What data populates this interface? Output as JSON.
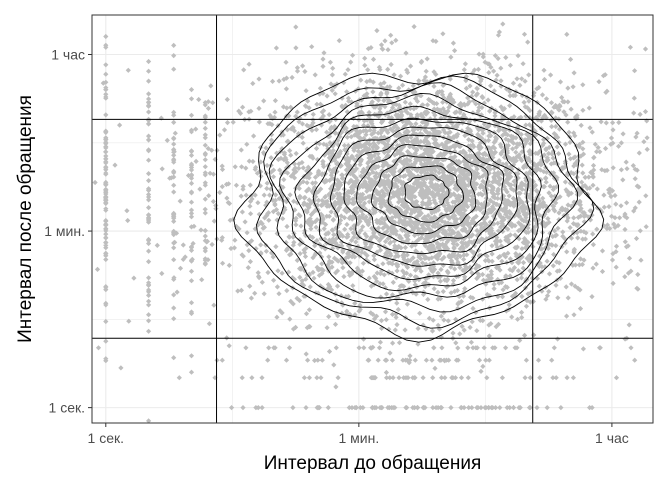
{
  "chart_data": {
    "type": "scatter",
    "title": "",
    "xlabel": "Интервал до обращения",
    "ylabel": "Интервал после обращения",
    "x_scale": "log10",
    "y_scale": "log10",
    "x_unit": "seconds",
    "y_unit": "seconds",
    "xlim": [
      0.8,
      7000
    ],
    "ylim": [
      0.7,
      9000
    ],
    "x_ticks": [
      {
        "value": 1,
        "label": "1 сек."
      },
      {
        "value": 60,
        "label": "1 мин."
      },
      {
        "value": 3600,
        "label": "1 час"
      }
    ],
    "y_ticks": [
      {
        "value": 1,
        "label": "1 сек."
      },
      {
        "value": 60,
        "label": "1 мин."
      },
      {
        "value": 3600,
        "label": "1 час"
      }
    ],
    "reference_lines": {
      "vertical": [
        6,
        1000
      ],
      "horizontal": [
        5,
        800
      ]
    },
    "density_peak": {
      "x": 180,
      "y": 150
    },
    "density_spread_log10": {
      "x": 0.62,
      "y": 0.58
    },
    "contour_levels": 12,
    "grid": true,
    "legend": "none",
    "colors": {
      "points": "#bebebe",
      "contours": "#000000",
      "reference_lines": "#000000",
      "grid": "#ebebeb",
      "panel_border": "#333333",
      "background": "#ffffff"
    }
  }
}
